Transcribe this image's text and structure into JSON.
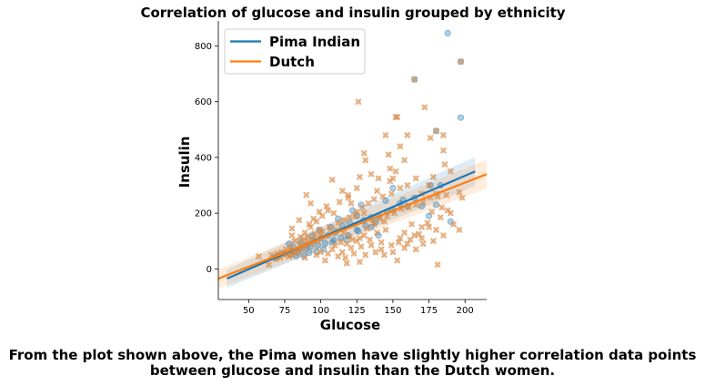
{
  "chart_data": {
    "type": "scatter",
    "title": "Correlation of glucose and insulin grouped by ethnicity",
    "xlabel": "Glucose",
    "ylabel": "Insulin",
    "xlim": [
      29,
      215
    ],
    "ylim": [
      -110,
      890
    ],
    "xticks": [
      50,
      75,
      100,
      125,
      150,
      175,
      200
    ],
    "yticks": [
      0,
      200,
      400,
      600,
      800
    ],
    "legend_position": "top-left",
    "grid": false,
    "series": [
      {
        "name": "Pima Indian",
        "color": "#1f77b4",
        "marker": "circle",
        "points": [
          [
            188,
            846
          ],
          [
            197,
            543
          ],
          [
            197,
            744
          ],
          [
            165,
            680
          ],
          [
            180,
            495
          ],
          [
            176,
            300
          ],
          [
            165,
            255
          ],
          [
            160,
            225
          ],
          [
            150,
            210
          ],
          [
            140,
            190
          ],
          [
            135,
            185
          ],
          [
            130,
            175
          ],
          [
            125,
            190
          ],
          [
            120,
            165
          ],
          [
            115,
            155
          ],
          [
            110,
            130
          ],
          [
            105,
            120
          ],
          [
            100,
            110
          ],
          [
            95,
            100
          ],
          [
            90,
            85
          ],
          [
            85,
            70
          ],
          [
            80,
            65
          ],
          [
            78,
            90
          ],
          [
            75,
            55
          ],
          [
            70,
            45
          ],
          [
            68,
            40
          ],
          [
            125,
            140
          ],
          [
            118,
            105
          ],
          [
            108,
            95
          ],
          [
            102,
            70
          ],
          [
            97,
            62
          ],
          [
            92,
            58
          ],
          [
            88,
            48
          ],
          [
            83,
            46
          ],
          [
            145,
            245
          ],
          [
            155,
            235
          ],
          [
            150,
            290
          ],
          [
            170,
            225
          ],
          [
            180,
            230
          ],
          [
            190,
            170
          ],
          [
            175,
            190
          ],
          [
            140,
            120
          ],
          [
            135,
            150
          ],
          [
            128,
            230
          ],
          [
            122,
            210
          ],
          [
            112,
            180
          ],
          [
            107,
            150
          ],
          [
            99,
            140
          ],
          [
            94,
            118
          ],
          [
            86,
            95
          ],
          [
            81,
            78
          ],
          [
            183,
            300
          ],
          [
            157,
            248
          ],
          [
            146,
            205
          ],
          [
            138,
            168
          ],
          [
            131,
            155
          ],
          [
            126,
            135
          ],
          [
            119,
            120
          ],
          [
            114,
            112
          ],
          [
            109,
            104
          ],
          [
            103,
            92
          ],
          [
            98,
            85
          ],
          [
            93,
            80
          ],
          [
            89,
            72
          ],
          [
            84,
            60
          ],
          [
            79,
            52
          ],
          [
            72,
            50
          ]
        ],
        "regression": {
          "x": [
            35,
            207
          ],
          "y": [
            -35,
            350
          ]
        }
      },
      {
        "name": "Dutch",
        "color": "#ff7f0e",
        "marker": "x",
        "points": [
          [
            197,
            744
          ],
          [
            180,
            495
          ],
          [
            165,
            680
          ],
          [
            126,
            600
          ],
          [
            152,
            545
          ],
          [
            153,
            545
          ],
          [
            172,
            580
          ],
          [
            185,
            480
          ],
          [
            176,
            470
          ],
          [
            185,
            425
          ],
          [
            155,
            440
          ],
          [
            158,
            390
          ],
          [
            160,
            480
          ],
          [
            145,
            480
          ],
          [
            147,
            410
          ],
          [
            166,
            325
          ],
          [
            178,
            330
          ],
          [
            186,
            375
          ],
          [
            190,
            350
          ],
          [
            175,
            300
          ],
          [
            130,
            415
          ],
          [
            131,
            390
          ],
          [
            127,
            330
          ],
          [
            139,
            280
          ],
          [
            140,
            325
          ],
          [
            150,
            325
          ],
          [
            148,
            315
          ],
          [
            155,
            290
          ],
          [
            160,
            300
          ],
          [
            170,
            270
          ],
          [
            180,
            270
          ],
          [
            187,
            265
          ],
          [
            196,
            275
          ],
          [
            198,
            255
          ],
          [
            188,
            210
          ],
          [
            183,
            185
          ],
          [
            175,
            150
          ],
          [
            170,
            150
          ],
          [
            163,
            160
          ],
          [
            165,
            120
          ],
          [
            158,
            130
          ],
          [
            155,
            110
          ],
          [
            145,
            140
          ],
          [
            144,
            170
          ],
          [
            136,
            175
          ],
          [
            139,
            130
          ],
          [
            124,
            190
          ],
          [
            121,
            235
          ],
          [
            119,
            255
          ],
          [
            115,
            280
          ],
          [
            108,
            320
          ],
          [
            109,
            200
          ],
          [
            104,
            225
          ],
          [
            99,
            205
          ],
          [
            95,
            180
          ],
          [
            92,
            160
          ],
          [
            99,
            140
          ],
          [
            100,
            120
          ],
          [
            95,
            105
          ],
          [
            91,
            100
          ],
          [
            86,
            90
          ],
          [
            85,
            70
          ],
          [
            83,
            57
          ],
          [
            80,
            50
          ],
          [
            78,
            45
          ],
          [
            72,
            40
          ],
          [
            66,
            50
          ],
          [
            57,
            45
          ],
          [
            64,
            15
          ],
          [
            90,
            265
          ],
          [
            93,
            235
          ],
          [
            85,
            175
          ],
          [
            80,
            145
          ],
          [
            80,
            120
          ],
          [
            89,
            40
          ],
          [
            97,
            50
          ],
          [
            103,
            30
          ],
          [
            118,
            20
          ],
          [
            127,
            25
          ],
          [
            153,
            30
          ],
          [
            181,
            15
          ],
          [
            196,
            140
          ],
          [
            185,
            120
          ],
          [
            178,
            100
          ],
          [
            171,
            90
          ],
          [
            166,
            70
          ],
          [
            158,
            75
          ],
          [
            149,
            85
          ],
          [
            142,
            95
          ],
          [
            134,
            105
          ],
          [
            130,
            120
          ],
          [
            125,
            100
          ],
          [
            120,
            115
          ],
          [
            116,
            130
          ],
          [
            111,
            140
          ],
          [
            107,
            130
          ],
          [
            102,
            115
          ],
          [
            98,
            100
          ],
          [
            94,
            90
          ],
          [
            90,
            80
          ],
          [
            87,
            75
          ],
          [
            84,
            65
          ],
          [
            81,
            60
          ],
          [
            77,
            55
          ],
          [
            74,
            50
          ],
          [
            110,
            85
          ],
          [
            114,
            95
          ],
          [
            118,
            90
          ],
          [
            122,
            105
          ],
          [
            127,
            110
          ],
          [
            132,
            145
          ],
          [
            137,
            160
          ],
          [
            141,
            180
          ],
          [
            146,
            190
          ],
          [
            151,
            200
          ],
          [
            156,
            215
          ],
          [
            161,
            220
          ],
          [
            166,
            230
          ],
          [
            171,
            240
          ],
          [
            176,
            255
          ],
          [
            181,
            260
          ],
          [
            130,
            200
          ],
          [
            125,
            205
          ],
          [
            120,
            185
          ],
          [
            116,
            175
          ],
          [
            112,
            165
          ],
          [
            106,
            150
          ],
          [
            101,
            135
          ],
          [
            96,
            125
          ],
          [
            91,
            115
          ],
          [
            88,
            105
          ],
          [
            129,
            220
          ],
          [
            133,
            235
          ],
          [
            137,
            250
          ],
          [
            143,
            260
          ],
          [
            149,
            270
          ],
          [
            152,
            350
          ],
          [
            148,
            360
          ],
          [
            135,
            340
          ],
          [
            125,
            290
          ],
          [
            119,
            265
          ],
          [
            113,
            240
          ],
          [
            105,
            210
          ],
          [
            101,
            190
          ],
          [
            97,
            170
          ],
          [
            93,
            150
          ],
          [
            89,
            130
          ],
          [
            86,
            115
          ],
          [
            82,
            100
          ],
          [
            79,
            80
          ],
          [
            76,
            70
          ],
          [
            73,
            60
          ],
          [
            70,
            55
          ],
          [
            69,
            35
          ],
          [
            115,
            60
          ],
          [
            121,
            75
          ],
          [
            128,
            80
          ],
          [
            135,
            85
          ],
          [
            142,
            70
          ],
          [
            150,
            60
          ],
          [
            160,
            90
          ],
          [
            170,
            110
          ],
          [
            180,
            140
          ],
          [
            190,
            200
          ],
          [
            192,
            160
          ],
          [
            105,
            55
          ],
          [
            100,
            60
          ],
          [
            108,
            70
          ],
          [
            112,
            45
          ],
          [
            117,
            40
          ],
          [
            123,
            55
          ],
          [
            131,
            50
          ],
          [
            138,
            60
          ],
          [
            144,
            50
          ],
          [
            154,
            95
          ],
          [
            162,
            105
          ],
          [
            168,
            125
          ],
          [
            174,
            165
          ],
          [
            177,
            205
          ],
          [
            184,
            220
          ]
        ],
        "regression": {
          "x": [
            29,
            215
          ],
          "y": [
            -35,
            340
          ]
        }
      }
    ]
  },
  "caption": {
    "line1": "From the plot shown above, the Pima women have slightly higher correlation data points",
    "line2": "between glucose and insulin than the Dutch women."
  }
}
